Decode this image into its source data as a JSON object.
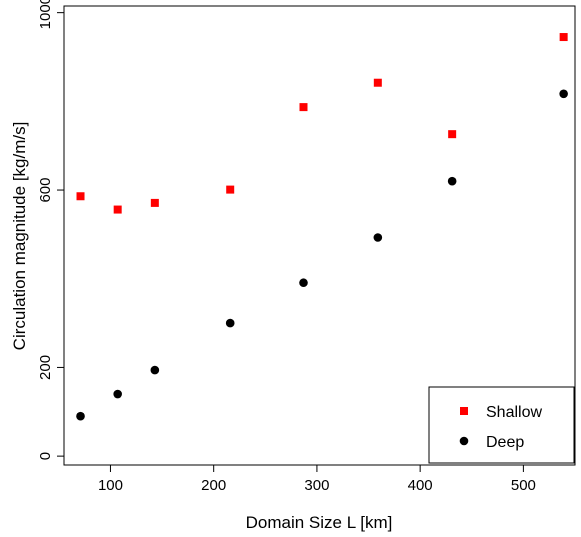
{
  "chart_data": {
    "type": "scatter",
    "xlabel": "Domain Size L [km]",
    "ylabel": "Circulation magnitude [kg/m/s]",
    "xlim": [
      55,
      550
    ],
    "ylim": [
      -20,
      1015
    ],
    "xticks": [
      100,
      200,
      300,
      400,
      500
    ],
    "yticks": [
      0,
      200,
      600,
      1000
    ],
    "grid": false,
    "legend": "bottom-right",
    "series": [
      {
        "name": "Shallow",
        "marker": "square",
        "color": "#ff0000",
        "x": [
          71,
          107,
          143,
          216,
          287,
          359,
          431,
          539
        ],
        "y": [
          586,
          556,
          571,
          601,
          787,
          842,
          726,
          945
        ]
      },
      {
        "name": "Deep",
        "marker": "circle",
        "color": "#000000",
        "x": [
          71,
          107,
          143,
          216,
          287,
          359,
          431,
          539
        ],
        "y": [
          90,
          140,
          194,
          300,
          391,
          493,
          620,
          817
        ]
      }
    ]
  }
}
